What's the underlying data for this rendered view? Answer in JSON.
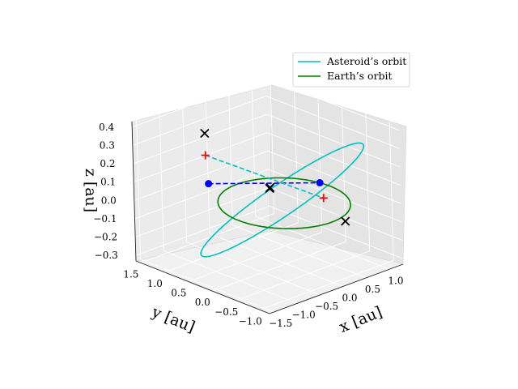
{
  "chart_data": {
    "type": "line",
    "projection": "3d",
    "title": "",
    "xlabel": "x [au]",
    "ylabel": "y [au]",
    "zlabel": "z [au]",
    "x_ticks": [
      "−1.5",
      "−1.0",
      "−0.5",
      "0.0",
      "0.5",
      "1.0"
    ],
    "y_ticks": [
      "−1.0",
      "−0.5",
      "0.0",
      "0.5",
      "1.0",
      "1.5"
    ],
    "z_ticks": [
      "−0.3",
      "−0.2",
      "−0.1",
      "0.0",
      "0.1",
      "0.2",
      "0.3",
      "0.4"
    ],
    "xlim": [
      -1.6,
      1.3
    ],
    "ylim": [
      -1.2,
      1.6
    ],
    "zlim": [
      -0.33,
      0.43
    ],
    "grid": true,
    "legend": {
      "position": "top-right",
      "entries": [
        {
          "label": "Asteroid’s orbit",
          "color": "#00bfbf"
        },
        {
          "label": "Earth’s orbit",
          "color": "#008000"
        }
      ]
    },
    "series": [
      {
        "name": "Asteroid’s orbit",
        "color": "#00bfbf",
        "semi_major_axis": 1.33,
        "eccentricity": 0.25,
        "inclination_deg": 14,
        "ascending_node_deg": 210,
        "arg_perihelion_deg": 20
      },
      {
        "name": "Earth’s orbit",
        "color": "#008000",
        "semi_major_axis": 1.0,
        "eccentricity": 0.0,
        "inclination_deg": 0
      }
    ],
    "markers": {
      "blue_dots": [
        [
          0.98,
          0.2,
          0.0
        ],
        [
          -0.55,
          1.05,
          0.05
        ]
      ],
      "red_plus": [
        [
          -0.55,
          1.1,
          0.2
        ],
        [
          0.95,
          0.1,
          -0.07
        ]
      ],
      "black_x": [
        [
          -0.45,
          1.2,
          0.3
        ],
        [
          0.0,
          0.3,
          0.05
        ],
        [
          -0.02,
          0.27,
          0.06
        ],
        [
          1.1,
          -0.2,
          -0.18
        ]
      ]
    },
    "dashed_lines": [
      {
        "color": "#0000ff",
        "from": [
          -0.55,
          1.05,
          0.05
        ],
        "to": [
          0.98,
          0.2,
          0.0
        ]
      },
      {
        "color": "#00bfbf",
        "from": [
          -0.55,
          1.1,
          0.2
        ],
        "to": [
          0.95,
          0.1,
          -0.07
        ]
      }
    ]
  }
}
